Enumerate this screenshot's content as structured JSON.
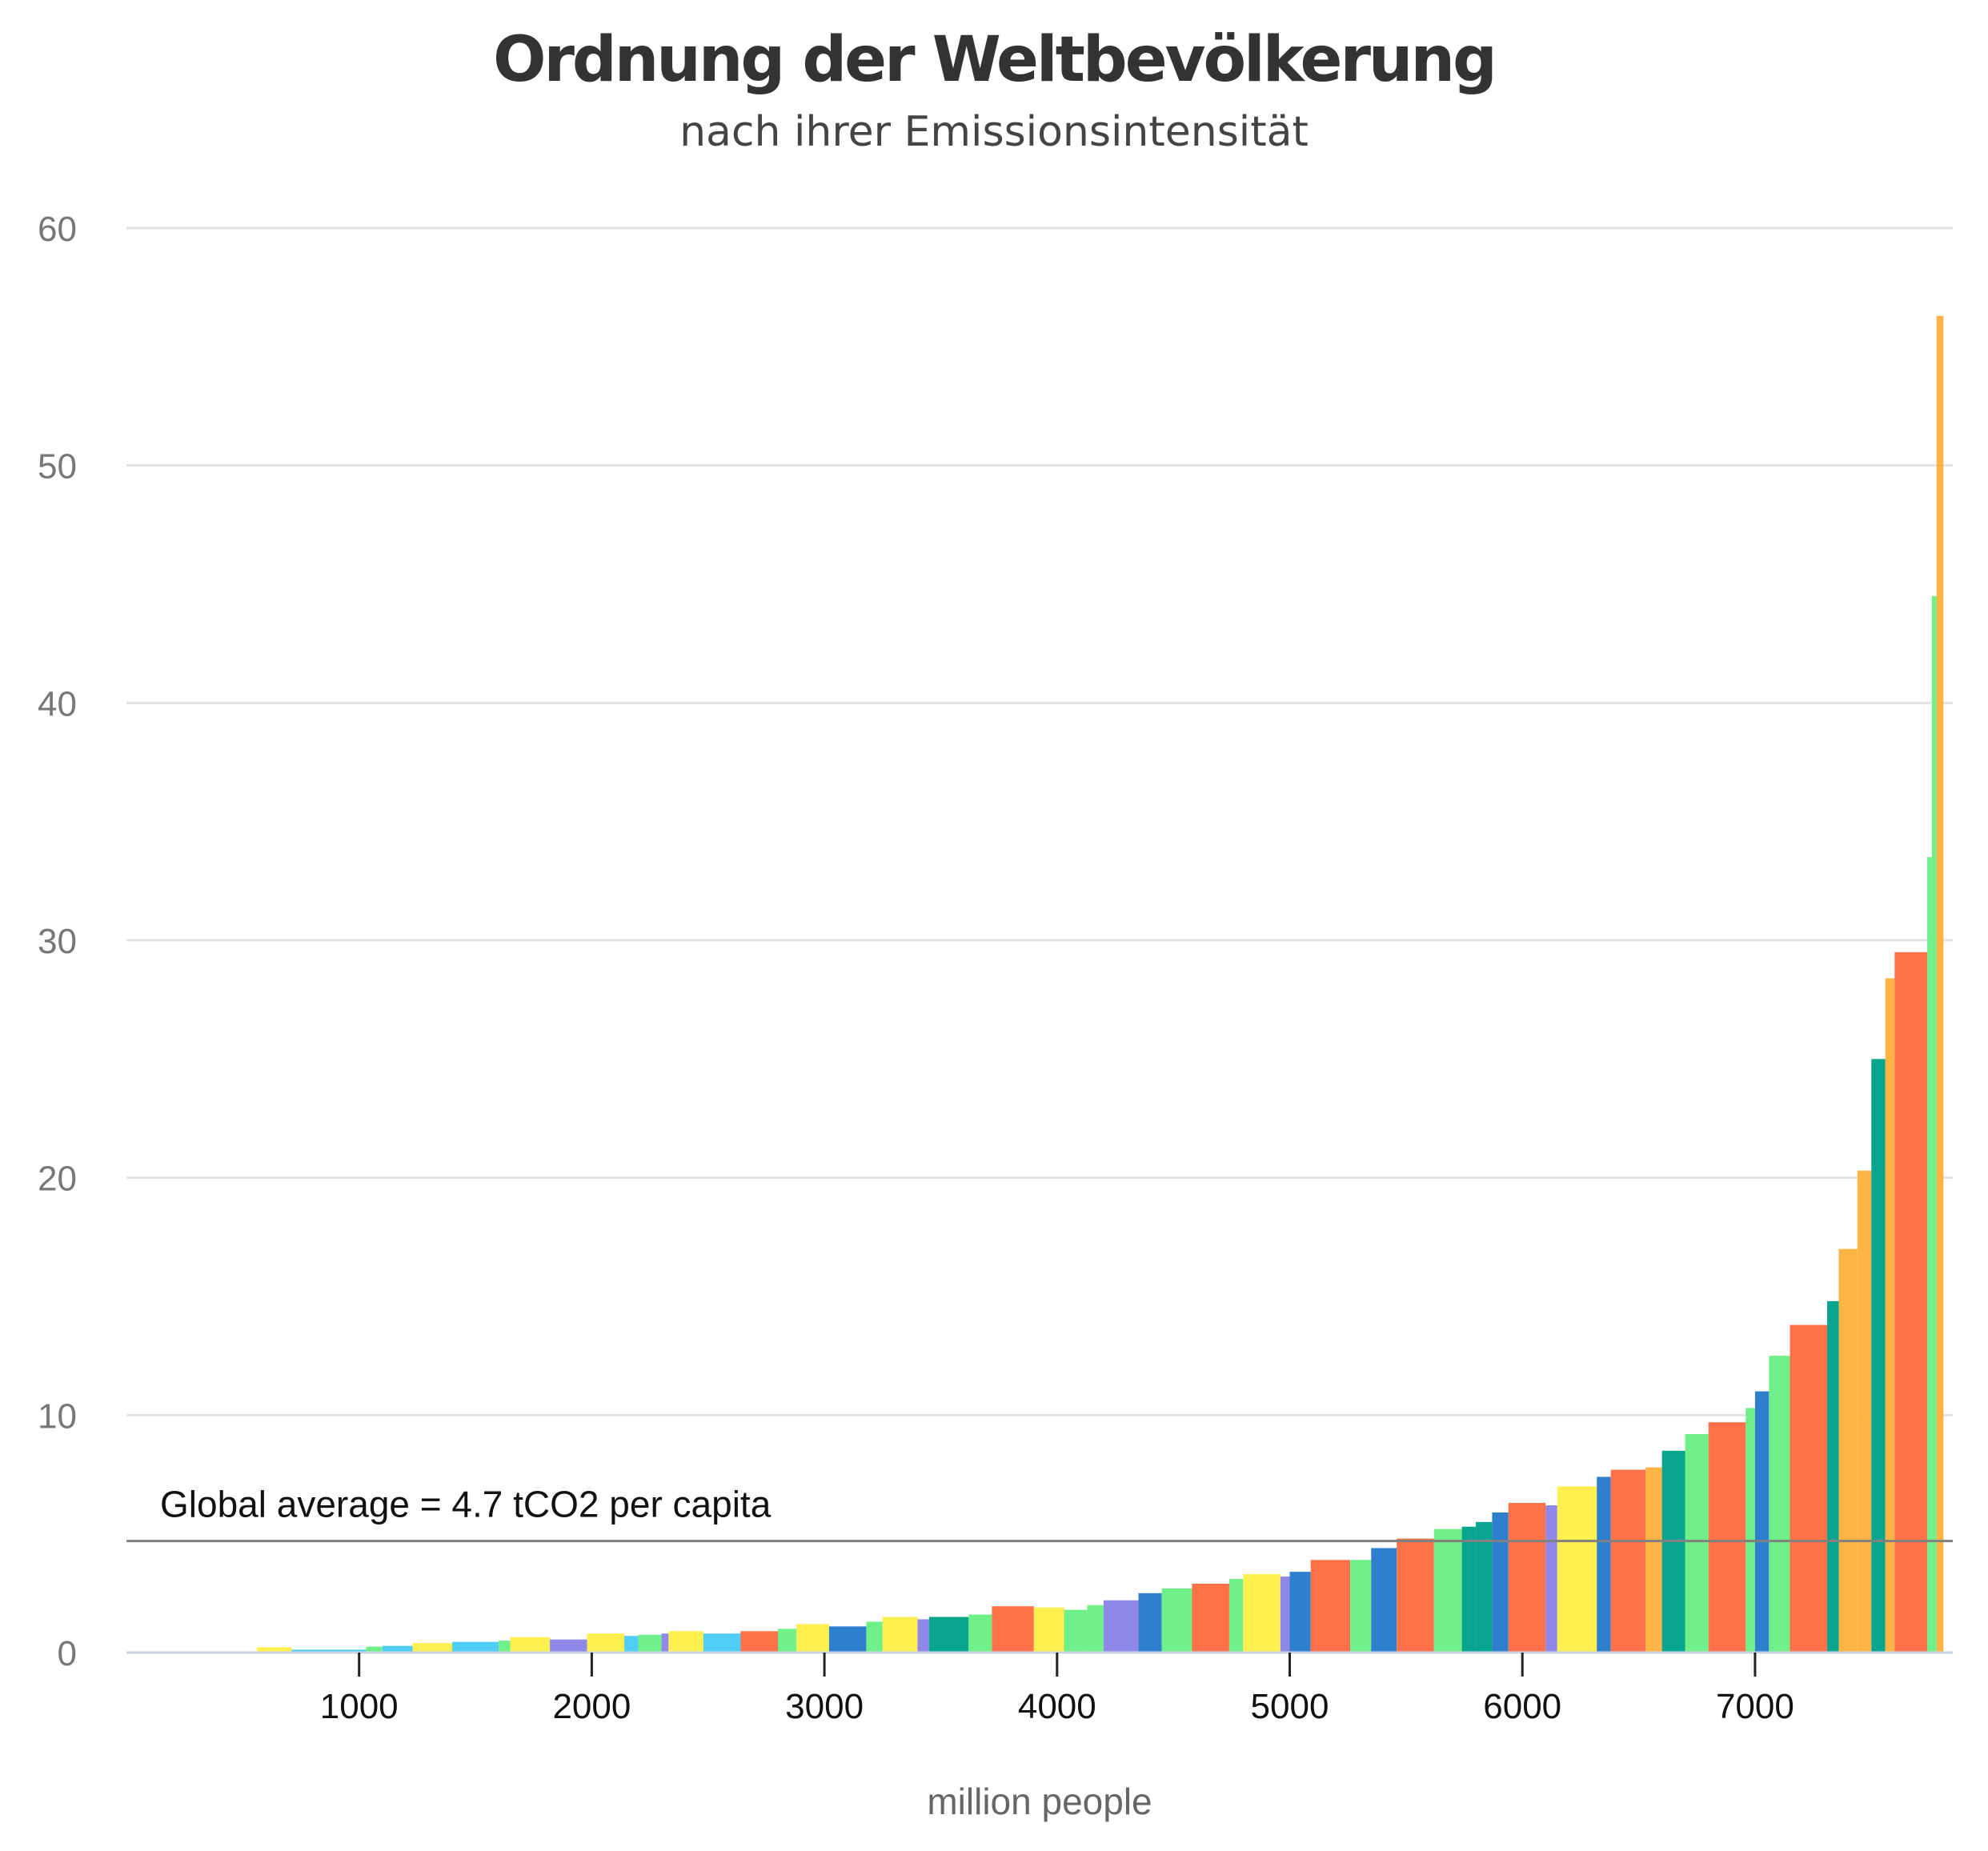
{
  "chart_data": {
    "type": "bar",
    "title": "Ordnung der Weltbevölkerung",
    "subtitle": "nach ihrer Emissionsintensität",
    "xlabel": "million people",
    "ylabel": "",
    "x_ticks": [
      1000,
      2000,
      3000,
      4000,
      5000,
      6000,
      7000
    ],
    "y_ticks": [
      0,
      10,
      20,
      30,
      40,
      50,
      60
    ],
    "xlim": [
      0,
      7850
    ],
    "ylim": [
      0,
      60
    ],
    "grid": true,
    "reference_line": {
      "value": 4.7,
      "label": "Global average = 4.7 tCO2 per capita"
    },
    "colors": {
      "grid": "#e3e3e3",
      "axis": "#c9d6e6",
      "reference": "#808080",
      "palette": {
        "red": "#ff7148",
        "yellow": "#fff04f",
        "green": "#6ff089",
        "teal": "#08a58e",
        "blue": "#2f7fcf",
        "cyan": "#4fcdf5",
        "purple": "#8f88e8",
        "orange": "#ffb443"
      }
    },
    "bars": [
      {
        "x0": 0,
        "x1": 560,
        "value": 0.05,
        "color": "cyan"
      },
      {
        "x0": 560,
        "x1": 710,
        "value": 0.22,
        "color": "yellow"
      },
      {
        "x0": 710,
        "x1": 1030,
        "value": 0.12,
        "color": "cyan"
      },
      {
        "x0": 1030,
        "x1": 1100,
        "value": 0.25,
        "color": "green"
      },
      {
        "x0": 1100,
        "x1": 1230,
        "value": 0.28,
        "color": "cyan"
      },
      {
        "x0": 1230,
        "x1": 1400,
        "value": 0.4,
        "color": "yellow"
      },
      {
        "x0": 1400,
        "x1": 1600,
        "value": 0.45,
        "color": "cyan"
      },
      {
        "x0": 1600,
        "x1": 1650,
        "value": 0.5,
        "color": "green"
      },
      {
        "x0": 1650,
        "x1": 1820,
        "value": 0.65,
        "color": "yellow"
      },
      {
        "x0": 1820,
        "x1": 1980,
        "value": 0.55,
        "color": "purple"
      },
      {
        "x0": 1980,
        "x1": 2140,
        "value": 0.8,
        "color": "yellow"
      },
      {
        "x0": 2140,
        "x1": 2200,
        "value": 0.7,
        "color": "cyan"
      },
      {
        "x0": 2200,
        "x1": 2300,
        "value": 0.75,
        "color": "green"
      },
      {
        "x0": 2300,
        "x1": 2330,
        "value": 0.8,
        "color": "purple"
      },
      {
        "x0": 2330,
        "x1": 2480,
        "value": 0.9,
        "color": "yellow"
      },
      {
        "x0": 2480,
        "x1": 2640,
        "value": 0.8,
        "color": "cyan"
      },
      {
        "x0": 2640,
        "x1": 2800,
        "value": 0.9,
        "color": "red"
      },
      {
        "x0": 2800,
        "x1": 2880,
        "value": 1.0,
        "color": "green"
      },
      {
        "x0": 2880,
        "x1": 3020,
        "value": 1.2,
        "color": "yellow"
      },
      {
        "x0": 3020,
        "x1": 3180,
        "value": 1.1,
        "color": "blue"
      },
      {
        "x0": 3180,
        "x1": 3250,
        "value": 1.3,
        "color": "green"
      },
      {
        "x0": 3250,
        "x1": 3400,
        "value": 1.5,
        "color": "yellow"
      },
      {
        "x0": 3400,
        "x1": 3450,
        "value": 1.4,
        "color": "purple"
      },
      {
        "x0": 3450,
        "x1": 3620,
        "value": 1.5,
        "color": "teal"
      },
      {
        "x0": 3620,
        "x1": 3720,
        "value": 1.6,
        "color": "green"
      },
      {
        "x0": 3720,
        "x1": 3900,
        "value": 1.95,
        "color": "red"
      },
      {
        "x0": 3900,
        "x1": 4030,
        "value": 1.9,
        "color": "yellow"
      },
      {
        "x0": 4030,
        "x1": 4130,
        "value": 1.8,
        "color": "green"
      },
      {
        "x0": 4130,
        "x1": 4200,
        "value": 2.0,
        "color": "green"
      },
      {
        "x0": 4200,
        "x1": 4350,
        "value": 2.2,
        "color": "purple"
      },
      {
        "x0": 4350,
        "x1": 4450,
        "value": 2.5,
        "color": "blue"
      },
      {
        "x0": 4450,
        "x1": 4580,
        "value": 2.7,
        "color": "green"
      },
      {
        "x0": 4580,
        "x1": 4740,
        "value": 2.9,
        "color": "red"
      },
      {
        "x0": 4740,
        "x1": 4800,
        "value": 3.1,
        "color": "green"
      },
      {
        "x0": 4800,
        "x1": 4960,
        "value": 3.3,
        "color": "yellow"
      },
      {
        "x0": 4960,
        "x1": 5000,
        "value": 3.2,
        "color": "purple"
      },
      {
        "x0": 5000,
        "x1": 5090,
        "value": 3.4,
        "color": "blue"
      },
      {
        "x0": 5090,
        "x1": 5260,
        "value": 3.9,
        "color": "red"
      },
      {
        "x0": 5260,
        "x1": 5350,
        "value": 3.9,
        "color": "green"
      },
      {
        "x0": 5350,
        "x1": 5460,
        "value": 4.4,
        "color": "blue"
      },
      {
        "x0": 5460,
        "x1": 5620,
        "value": 4.8,
        "color": "red"
      },
      {
        "x0": 5620,
        "x1": 5740,
        "value": 5.2,
        "color": "green"
      },
      {
        "x0": 5740,
        "x1": 5800,
        "value": 5.3,
        "color": "teal"
      },
      {
        "x0": 5800,
        "x1": 5870,
        "value": 5.5,
        "color": "teal"
      },
      {
        "x0": 5870,
        "x1": 5940,
        "value": 5.9,
        "color": "blue"
      },
      {
        "x0": 5940,
        "x1": 6100,
        "value": 6.3,
        "color": "red"
      },
      {
        "x0": 6100,
        "x1": 6150,
        "value": 6.2,
        "color": "purple"
      },
      {
        "x0": 6150,
        "x1": 6320,
        "value": 7.0,
        "color": "yellow"
      },
      {
        "x0": 6320,
        "x1": 6380,
        "value": 7.4,
        "color": "blue"
      },
      {
        "x0": 6380,
        "x1": 6530,
        "value": 7.7,
        "color": "red"
      },
      {
        "x0": 6530,
        "x1": 6600,
        "value": 7.8,
        "color": "orange"
      },
      {
        "x0": 6600,
        "x1": 6700,
        "value": 8.5,
        "color": "teal"
      },
      {
        "x0": 6700,
        "x1": 6800,
        "value": 9.2,
        "color": "green"
      },
      {
        "x0": 6800,
        "x1": 6960,
        "value": 9.7,
        "color": "red"
      },
      {
        "x0": 6960,
        "x1": 7000,
        "value": 10.3,
        "color": "green"
      },
      {
        "x0": 7000,
        "x1": 7060,
        "value": 11.0,
        "color": "blue"
      },
      {
        "x0": 7060,
        "x1": 7150,
        "value": 12.5,
        "color": "green"
      },
      {
        "x0": 7150,
        "x1": 7310,
        "value": 13.8,
        "color": "red"
      },
      {
        "x0": 7310,
        "x1": 7360,
        "value": 14.8,
        "color": "teal"
      },
      {
        "x0": 7360,
        "x1": 7440,
        "value": 17.0,
        "color": "orange"
      },
      {
        "x0": 7440,
        "x1": 7500,
        "value": 20.3,
        "color": "orange"
      },
      {
        "x0": 7500,
        "x1": 7560,
        "value": 25.0,
        "color": "teal"
      },
      {
        "x0": 7560,
        "x1": 7600,
        "value": 28.4,
        "color": "orange"
      },
      {
        "x0": 7600,
        "x1": 7740,
        "value": 29.5,
        "color": "red"
      },
      {
        "x0": 7740,
        "x1": 7760,
        "value": 33.5,
        "color": "green"
      },
      {
        "x0": 7760,
        "x1": 7780,
        "value": 44.5,
        "color": "green"
      },
      {
        "x0": 7780,
        "x1": 7810,
        "value": 56.3,
        "color": "orange"
      }
    ]
  }
}
